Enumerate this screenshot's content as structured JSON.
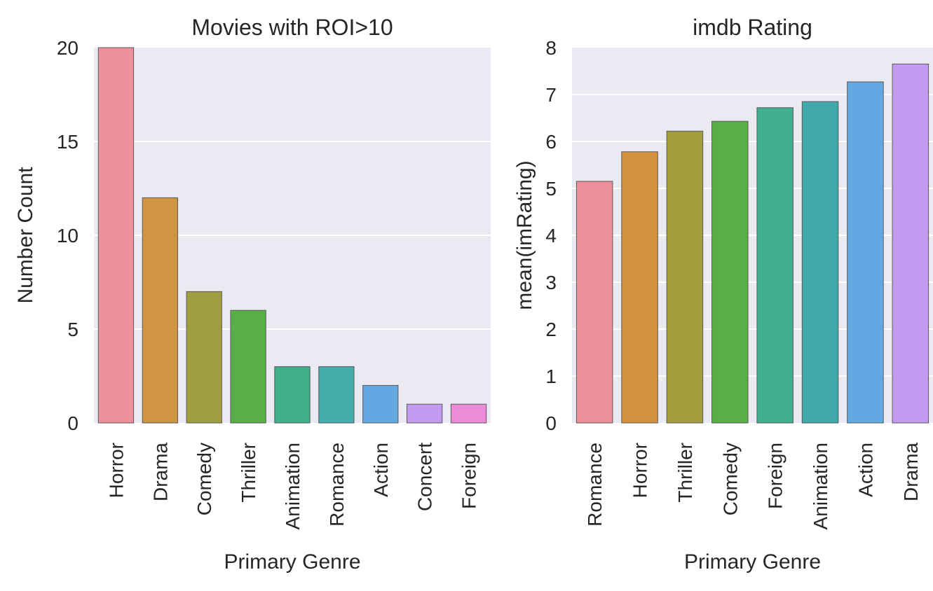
{
  "chart_data": [
    {
      "type": "bar",
      "title": "Movies with ROI>10",
      "xlabel": "Primary Genre",
      "ylabel": "Number Count",
      "categories": [
        "Horror",
        "Drama",
        "Comedy",
        "Thriller",
        "Animation",
        "Romance",
        "Action",
        "Concert",
        "Foreign"
      ],
      "values": [
        20,
        12,
        7,
        6,
        3,
        3,
        2,
        1,
        1
      ],
      "colors": [
        "#ec909a",
        "#cf9444",
        "#a09d3f",
        "#58af48",
        "#40ae89",
        "#42adaa",
        "#62a8e2",
        "#c39af0",
        "#ed8bd8"
      ],
      "ylim": [
        0,
        20
      ],
      "yticks": [
        0,
        5,
        10,
        15,
        20
      ],
      "grid": true
    },
    {
      "type": "bar",
      "title": "imdb Rating",
      "xlabel": "Primary Genre",
      "ylabel": "mean(imRating)",
      "categories": [
        "Romance",
        "Horror",
        "Thriller",
        "Comedy",
        "Foreign",
        "Animation",
        "Action",
        "Drama"
      ],
      "values": [
        5.15,
        5.78,
        6.22,
        6.43,
        6.72,
        6.85,
        7.27,
        7.65
      ],
      "colors": [
        "#ec909a",
        "#d3913f",
        "#a29d3d",
        "#58af48",
        "#41ae8d",
        "#3faaa9",
        "#62a8e2",
        "#c39af0"
      ],
      "ylim": [
        0,
        8
      ],
      "yticks": [
        0,
        1,
        2,
        3,
        4,
        5,
        6,
        7,
        8
      ],
      "grid": true
    }
  ]
}
